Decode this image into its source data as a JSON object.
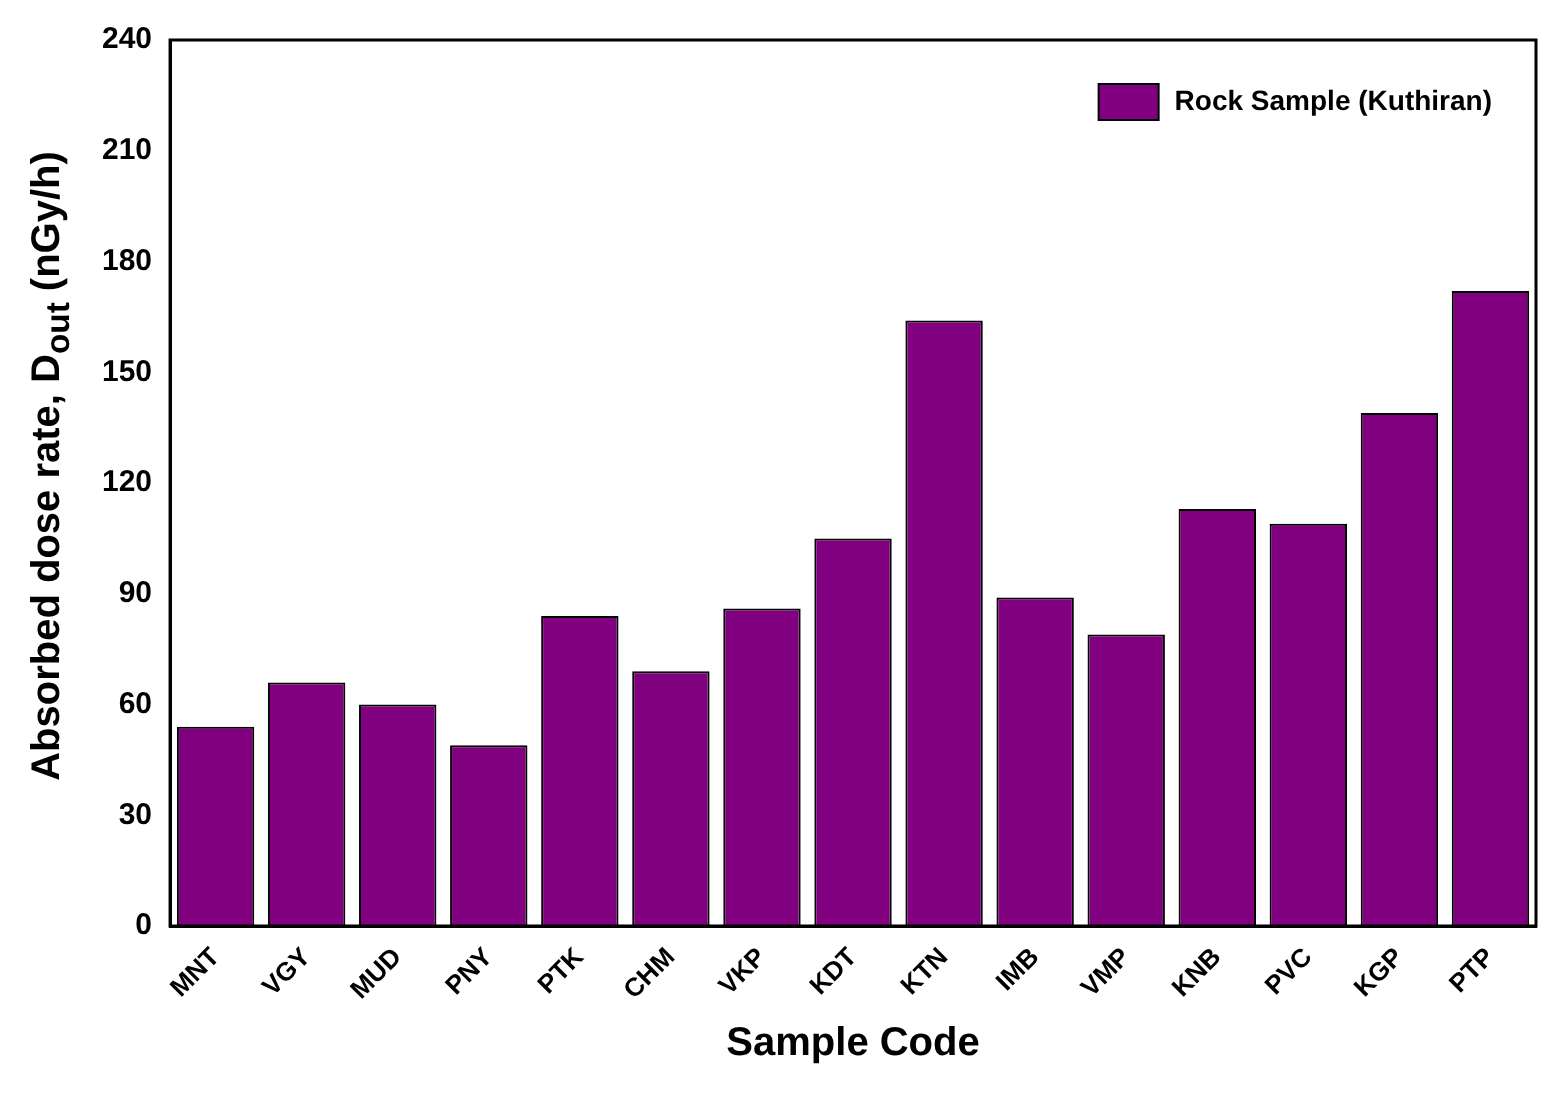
{
  "chart_data": {
    "type": "bar",
    "xlabel": "Sample Code",
    "ylabel": "Absorbed dose rate, D$_{out}$ (nGy/h)",
    "categories": [
      "MNT",
      "VGY",
      "MUD",
      "PNY",
      "PTK",
      "CHM",
      "VKP",
      "KDT",
      "KTN",
      "IMB",
      "VMP",
      "KNB",
      "PVC",
      "KGP",
      "PTP"
    ],
    "series": [
      {
        "name": "Rock Sample (Kuthiran)",
        "color": "#800080",
        "values": [
          54,
          66,
          60,
          49,
          84,
          69,
          86,
          105,
          164,
          89,
          79,
          113,
          109,
          139,
          172
        ]
      }
    ],
    "ylim": [
      0,
      240
    ],
    "yticks": [
      0,
      30,
      60,
      90,
      120,
      150,
      180,
      210,
      240
    ],
    "grid": false,
    "legend": "top right"
  }
}
